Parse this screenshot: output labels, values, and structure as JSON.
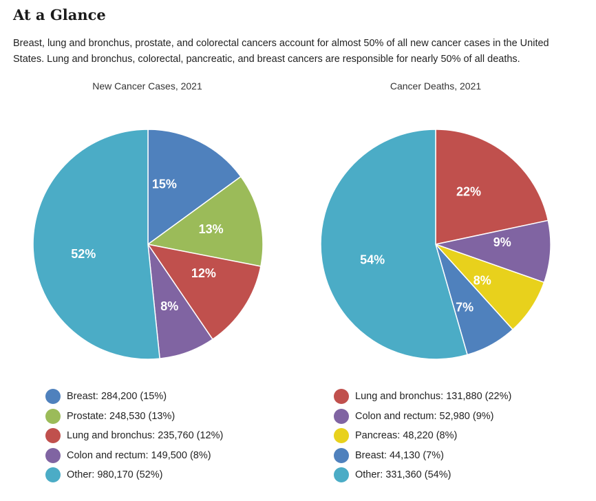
{
  "section": {
    "heading": "At a Glance",
    "intro": "Breast, lung and bronchus, prostate, and colorectal cancers account for almost 50% of all new cancer cases in the United States. Lung and bronchus, colorectal, pancreatic, and breast cancers are responsible for nearly 50% of all deaths."
  },
  "chart_data": [
    {
      "type": "pie",
      "title": "New Cancer Cases, 2021",
      "slices": [
        {
          "label": "Breast",
          "value": 284200,
          "percent": "15%",
          "color": "#4f81bd",
          "legend": "Breast: 284,200 (15%)"
        },
        {
          "label": "Prostate",
          "value": 248530,
          "percent": "13%",
          "color": "#9bbb59",
          "legend": "Prostate: 248,530 (13%)"
        },
        {
          "label": "Lung and bronchus",
          "value": 235760,
          "percent": "12%",
          "color": "#c0504d",
          "legend": "Lung and bronchus: 235,760 (12%)"
        },
        {
          "label": "Colon and rectum",
          "value": 149500,
          "percent": "8%",
          "color": "#8064a2",
          "legend": "Colon and rectum: 149,500 (8%)"
        },
        {
          "label": "Other",
          "value": 980170,
          "percent": "52%",
          "color": "#4bacc6",
          "legend": "Other: 980,170 (52%)"
        }
      ]
    },
    {
      "type": "pie",
      "title": "Cancer Deaths, 2021",
      "slices": [
        {
          "label": "Lung and bronchus",
          "value": 131880,
          "percent": "22%",
          "color": "#c0504d",
          "legend": "Lung and bronchus: 131,880 (22%)"
        },
        {
          "label": "Colon and rectum",
          "value": 52980,
          "percent": "9%",
          "color": "#8064a2",
          "legend": "Colon and rectum: 52,980 (9%)"
        },
        {
          "label": "Pancreas",
          "value": 48220,
          "percent": "8%",
          "color": "#e8d11c",
          "legend": "Pancreas: 48,220 (8%)"
        },
        {
          "label": "Breast",
          "value": 44130,
          "percent": "7%",
          "color": "#4f81bd",
          "legend": "Breast: 44,130 (7%)"
        },
        {
          "label": "Other",
          "value": 331360,
          "percent": "54%",
          "color": "#4bacc6",
          "legend": "Other: 331,360 (54%)"
        }
      ]
    }
  ]
}
